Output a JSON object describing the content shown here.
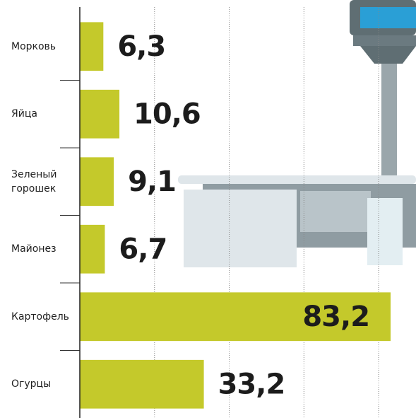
{
  "chart_data": {
    "type": "bar",
    "orientation": "horizontal",
    "categories": [
      "Морковь",
      "Яйца",
      "Зеленый горошек",
      "Майонез",
      "Картофель",
      "Огурцы"
    ],
    "values": [
      6.3,
      10.6,
      9.1,
      6.7,
      83.2,
      33.2
    ],
    "value_labels": [
      "6,3",
      "10,6",
      "9,1",
      "6,7",
      "83,2",
      "33,2"
    ],
    "color": "#c4c92b",
    "xlim": [
      0,
      90
    ],
    "xticks": [
      0,
      20,
      40,
      60,
      80
    ],
    "grid": true
  }
}
